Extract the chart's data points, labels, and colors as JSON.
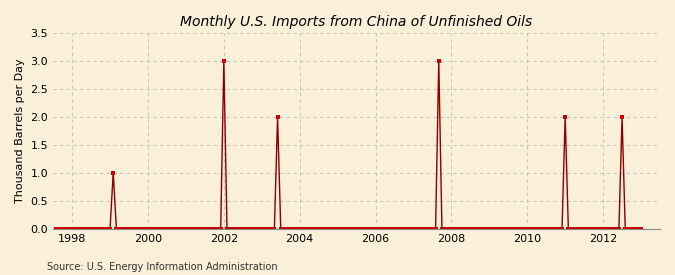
{
  "title": "Monthly U.S. Imports from China of Unfinished Oils",
  "ylabel": "Thousand Barrels per Day",
  "source": "Source: U.S. Energy Information Administration",
  "background_color": "#faefd9",
  "line_color": "#8b0000",
  "marker_color": "#cc0000",
  "grid_color": "#bbbbbb",
  "xlim": [
    1997.5,
    2013.5
  ],
  "ylim": [
    0.0,
    3.5
  ],
  "xticks": [
    1998,
    2000,
    2002,
    2004,
    2006,
    2008,
    2010,
    2012
  ],
  "yticks": [
    0.0,
    0.5,
    1.0,
    1.5,
    2.0,
    2.5,
    3.0,
    3.5
  ],
  "data": [
    [
      1997.583,
      0.0
    ],
    [
      1997.667,
      0.0
    ],
    [
      1997.75,
      0.0
    ],
    [
      1997.833,
      0.0
    ],
    [
      1997.917,
      0.0
    ],
    [
      1998.0,
      0.0
    ],
    [
      1998.083,
      0.0
    ],
    [
      1998.167,
      0.0
    ],
    [
      1998.25,
      0.0
    ],
    [
      1998.333,
      0.0
    ],
    [
      1998.417,
      0.0
    ],
    [
      1998.5,
      0.0
    ],
    [
      1998.583,
      0.0
    ],
    [
      1998.667,
      0.0
    ],
    [
      1998.75,
      0.0
    ],
    [
      1998.833,
      0.0
    ],
    [
      1998.917,
      0.0
    ],
    [
      1999.0,
      0.0
    ],
    [
      1999.083,
      1.0
    ],
    [
      1999.167,
      0.0
    ],
    [
      1999.25,
      0.0
    ],
    [
      1999.333,
      0.0
    ],
    [
      1999.417,
      0.0
    ],
    [
      1999.5,
      0.0
    ],
    [
      1999.583,
      0.0
    ],
    [
      1999.667,
      0.0
    ],
    [
      1999.75,
      0.0
    ],
    [
      1999.833,
      0.0
    ],
    [
      1999.917,
      0.0
    ],
    [
      2000.0,
      0.0
    ],
    [
      2000.083,
      0.0
    ],
    [
      2000.167,
      0.0
    ],
    [
      2000.25,
      0.0
    ],
    [
      2000.333,
      0.0
    ],
    [
      2000.417,
      0.0
    ],
    [
      2000.5,
      0.0
    ],
    [
      2000.583,
      0.0
    ],
    [
      2000.667,
      0.0
    ],
    [
      2000.75,
      0.0
    ],
    [
      2000.833,
      0.0
    ],
    [
      2000.917,
      0.0
    ],
    [
      2001.0,
      0.0
    ],
    [
      2001.083,
      0.0
    ],
    [
      2001.167,
      0.0
    ],
    [
      2001.25,
      0.0
    ],
    [
      2001.333,
      0.0
    ],
    [
      2001.417,
      0.0
    ],
    [
      2001.5,
      0.0
    ],
    [
      2001.583,
      0.0
    ],
    [
      2001.667,
      0.0
    ],
    [
      2001.75,
      0.0
    ],
    [
      2001.833,
      0.0
    ],
    [
      2001.917,
      0.0
    ],
    [
      2002.0,
      3.0
    ],
    [
      2002.083,
      0.0
    ],
    [
      2002.167,
      0.0
    ],
    [
      2002.25,
      0.0
    ],
    [
      2002.333,
      0.0
    ],
    [
      2002.417,
      0.0
    ],
    [
      2002.5,
      0.0
    ],
    [
      2002.583,
      0.0
    ],
    [
      2002.667,
      0.0
    ],
    [
      2002.75,
      0.0
    ],
    [
      2002.833,
      0.0
    ],
    [
      2002.917,
      0.0
    ],
    [
      2003.0,
      0.0
    ],
    [
      2003.083,
      0.0
    ],
    [
      2003.167,
      0.0
    ],
    [
      2003.25,
      0.0
    ],
    [
      2003.333,
      0.0
    ],
    [
      2003.417,
      2.0
    ],
    [
      2003.5,
      0.0
    ],
    [
      2003.583,
      0.0
    ],
    [
      2003.667,
      0.0
    ],
    [
      2003.75,
      0.0
    ],
    [
      2003.833,
      0.0
    ],
    [
      2003.917,
      0.0
    ],
    [
      2004.0,
      0.0
    ],
    [
      2004.083,
      0.0
    ],
    [
      2004.167,
      0.0
    ],
    [
      2004.25,
      0.0
    ],
    [
      2004.333,
      0.0
    ],
    [
      2004.417,
      0.0
    ],
    [
      2004.5,
      0.0
    ],
    [
      2004.583,
      0.0
    ],
    [
      2004.667,
      0.0
    ],
    [
      2004.75,
      0.0
    ],
    [
      2004.833,
      0.0
    ],
    [
      2004.917,
      0.0
    ],
    [
      2005.0,
      0.0
    ],
    [
      2005.083,
      0.0
    ],
    [
      2005.167,
      0.0
    ],
    [
      2005.25,
      0.0
    ],
    [
      2005.333,
      0.0
    ],
    [
      2005.417,
      0.0
    ],
    [
      2005.5,
      0.0
    ],
    [
      2005.583,
      0.0
    ],
    [
      2005.667,
      0.0
    ],
    [
      2005.75,
      0.0
    ],
    [
      2005.833,
      0.0
    ],
    [
      2005.917,
      0.0
    ],
    [
      2006.0,
      0.0
    ],
    [
      2006.083,
      0.0
    ],
    [
      2006.167,
      0.0
    ],
    [
      2006.25,
      0.0
    ],
    [
      2006.333,
      0.0
    ],
    [
      2006.417,
      0.0
    ],
    [
      2006.5,
      0.0
    ],
    [
      2006.583,
      0.0
    ],
    [
      2006.667,
      0.0
    ],
    [
      2006.75,
      0.0
    ],
    [
      2006.833,
      0.0
    ],
    [
      2006.917,
      0.0
    ],
    [
      2007.0,
      0.0
    ],
    [
      2007.083,
      0.0
    ],
    [
      2007.167,
      0.0
    ],
    [
      2007.25,
      0.0
    ],
    [
      2007.333,
      0.0
    ],
    [
      2007.417,
      0.0
    ],
    [
      2007.5,
      0.0
    ],
    [
      2007.583,
      0.0
    ],
    [
      2007.667,
      3.0
    ],
    [
      2007.75,
      0.0
    ],
    [
      2007.833,
      0.0
    ],
    [
      2007.917,
      0.0
    ],
    [
      2008.0,
      0.0
    ],
    [
      2008.083,
      0.0
    ],
    [
      2008.167,
      0.0
    ],
    [
      2008.25,
      0.0
    ],
    [
      2008.333,
      0.0
    ],
    [
      2008.417,
      0.0
    ],
    [
      2008.5,
      0.0
    ],
    [
      2008.583,
      0.0
    ],
    [
      2008.667,
      0.0
    ],
    [
      2008.75,
      0.0
    ],
    [
      2008.833,
      0.0
    ],
    [
      2008.917,
      0.0
    ],
    [
      2009.0,
      0.0
    ],
    [
      2009.083,
      0.0
    ],
    [
      2009.167,
      0.0
    ],
    [
      2009.25,
      0.0
    ],
    [
      2009.333,
      0.0
    ],
    [
      2009.417,
      0.0
    ],
    [
      2009.5,
      0.0
    ],
    [
      2009.583,
      0.0
    ],
    [
      2009.667,
      0.0
    ],
    [
      2009.75,
      0.0
    ],
    [
      2009.833,
      0.0
    ],
    [
      2009.917,
      0.0
    ],
    [
      2010.0,
      0.0
    ],
    [
      2010.083,
      0.0
    ],
    [
      2010.167,
      0.0
    ],
    [
      2010.25,
      0.0
    ],
    [
      2010.333,
      0.0
    ],
    [
      2010.417,
      0.0
    ],
    [
      2010.5,
      0.0
    ],
    [
      2010.583,
      0.0
    ],
    [
      2010.667,
      0.0
    ],
    [
      2010.75,
      0.0
    ],
    [
      2010.833,
      0.0
    ],
    [
      2010.917,
      0.0
    ],
    [
      2011.0,
      2.0
    ],
    [
      2011.083,
      0.0
    ],
    [
      2011.167,
      0.0
    ],
    [
      2011.25,
      0.0
    ],
    [
      2011.333,
      0.0
    ],
    [
      2011.417,
      0.0
    ],
    [
      2011.5,
      0.0
    ],
    [
      2011.583,
      0.0
    ],
    [
      2011.667,
      0.0
    ],
    [
      2011.75,
      0.0
    ],
    [
      2011.833,
      0.0
    ],
    [
      2011.917,
      0.0
    ],
    [
      2012.0,
      0.0
    ],
    [
      2012.083,
      0.0
    ],
    [
      2012.167,
      0.0
    ],
    [
      2012.25,
      0.0
    ],
    [
      2012.333,
      0.0
    ],
    [
      2012.417,
      0.0
    ],
    [
      2012.5,
      2.0
    ],
    [
      2012.583,
      0.0
    ],
    [
      2012.667,
      0.0
    ],
    [
      2012.75,
      0.0
    ],
    [
      2012.833,
      0.0
    ],
    [
      2012.917,
      0.0
    ],
    [
      2013.0,
      0.0
    ]
  ]
}
